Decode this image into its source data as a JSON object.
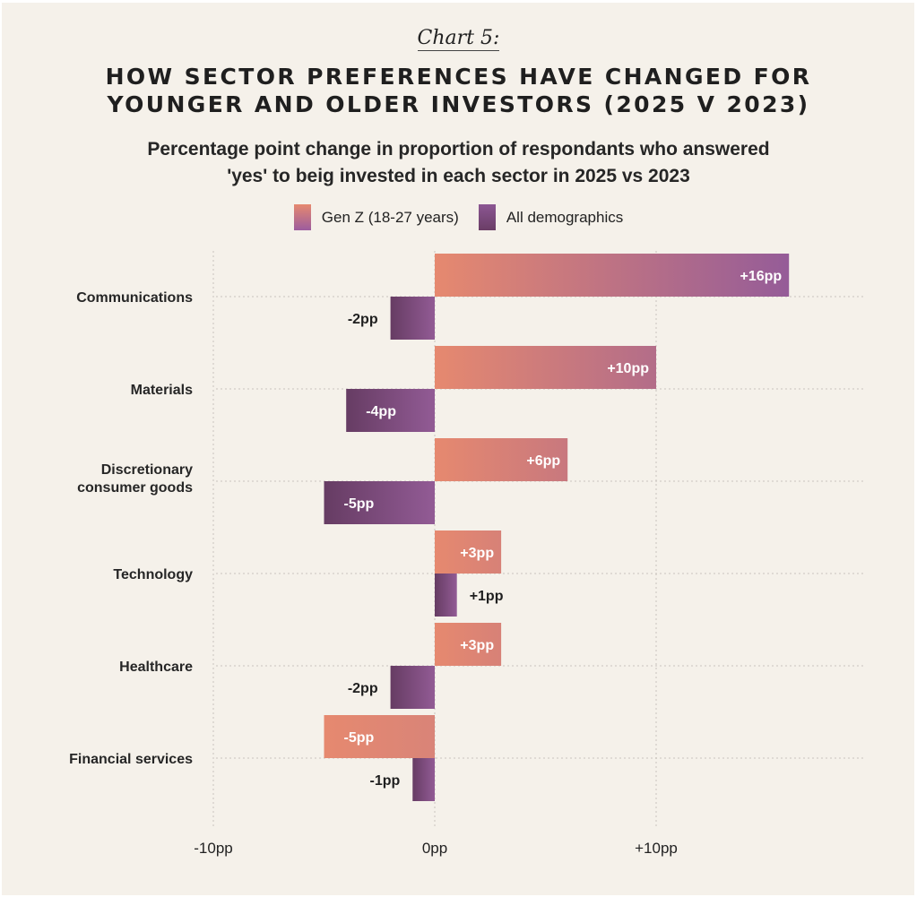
{
  "header": {
    "kicker": "Chart 5:",
    "title_line1": "HOW SECTOR PREFERENCES HAVE CHANGED FOR",
    "title_line2": "YOUNGER AND OLDER INVESTORS (2025 V 2023)",
    "subtitle_line1": "Percentage point change in proportion of respondants who answered",
    "subtitle_line2": "'yes' to beig invested in each sector in 2025 vs 2023"
  },
  "legend": [
    {
      "label": "Gen Z (18-27 years)",
      "key": "genz"
    },
    {
      "label": "All demographics",
      "key": "all"
    }
  ],
  "colors": {
    "background": "#f5f1ea",
    "genz_start": "#e6896f",
    "genz_end": "#955c98",
    "all_start": "#663c63",
    "all_end": "#925b95",
    "grid": "#c9c4bd"
  },
  "chart_data": {
    "type": "bar",
    "orientation": "horizontal",
    "title": "HOW SECTOR PREFERENCES HAVE CHANGED FOR YOUNGER AND OLDER INVESTORS (2025 V 2023)",
    "subtitle": "Percentage point change in proportion of respondants who answered 'yes' to beig invested in each sector in 2025 vs 2023",
    "categories": [
      [
        "Communications"
      ],
      [
        "Materials"
      ],
      [
        "Discretionary",
        "consumer goods"
      ],
      [
        "Technology"
      ],
      [
        "Healthcare"
      ],
      [
        "Financial services"
      ]
    ],
    "series": [
      {
        "name": "Gen Z (18-27 years)",
        "key": "genz",
        "values": [
          16,
          10,
          6,
          3,
          3,
          -5
        ]
      },
      {
        "name": "All demographics",
        "key": "all",
        "values": [
          -2,
          -4,
          -5,
          1,
          -2,
          -1
        ]
      }
    ],
    "value_labels": {
      "genz": [
        "+16pp",
        "+10pp",
        "+6pp",
        "+3pp",
        "+3pp",
        "-5pp"
      ],
      "all": [
        "-2pp",
        "-4pp",
        "-5pp",
        "+1pp",
        "-2pp",
        "-1pp"
      ]
    },
    "xlim": [
      -10,
      19
    ],
    "xticks": [
      -10,
      0,
      10
    ],
    "xtick_labels": [
      "-10pp",
      "0pp",
      "+10pp"
    ],
    "xlabel": "",
    "ylabel": "",
    "grid": true,
    "legend_position": "top-center"
  }
}
